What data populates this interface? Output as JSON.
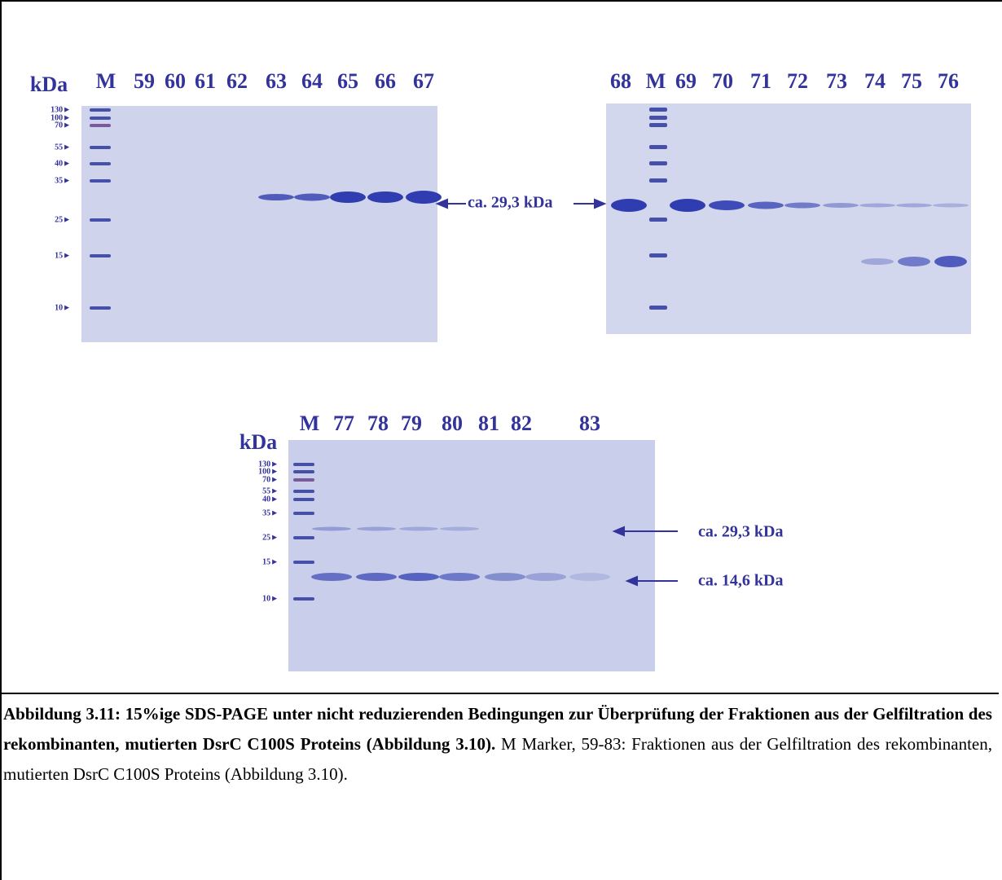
{
  "figure": {
    "gel1": {
      "unit": "kDa",
      "lanes": [
        "M",
        "59",
        "60",
        "61",
        "62",
        "63",
        "64",
        "65",
        "66",
        "67"
      ],
      "markers": [
        "130►",
        "100►",
        "70►",
        "55►",
        "40►",
        "35►",
        "25►",
        "15►",
        "10►"
      ]
    },
    "gel2": {
      "lanes": [
        "68",
        "M",
        "69",
        "70",
        "71",
        "72",
        "73",
        "74",
        "75",
        "76"
      ]
    },
    "middle_annotation": "ca. 29,3 kDa",
    "gel3": {
      "unit": "kDa",
      "lanes": [
        "M",
        "77",
        "78",
        "79",
        "80",
        "81",
        "82",
        "83"
      ],
      "markers": [
        "130►",
        "100►",
        "70►",
        "55►",
        "40►",
        "35►",
        "25►",
        "15►",
        "10►"
      ],
      "annotations": [
        "ca. 29,3 kDa",
        "ca. 14,6 kDa"
      ]
    }
  },
  "caption": {
    "label": "Abbildung 3.11:",
    "title": "15%ige SDS-PAGE unter nicht reduzierenden Bedingungen zur Überprüfung der Fraktionen aus der Gelfiltration des rekombinanten, mutierten DsrC C100S Proteins",
    "ref": "(Abbildung 3.10).",
    "text": "M Marker, 59-83: Fraktionen aus der Gelfiltration des rekombinanten, mutierten DsrC C100S Proteins (Abbildung 3.10)."
  }
}
